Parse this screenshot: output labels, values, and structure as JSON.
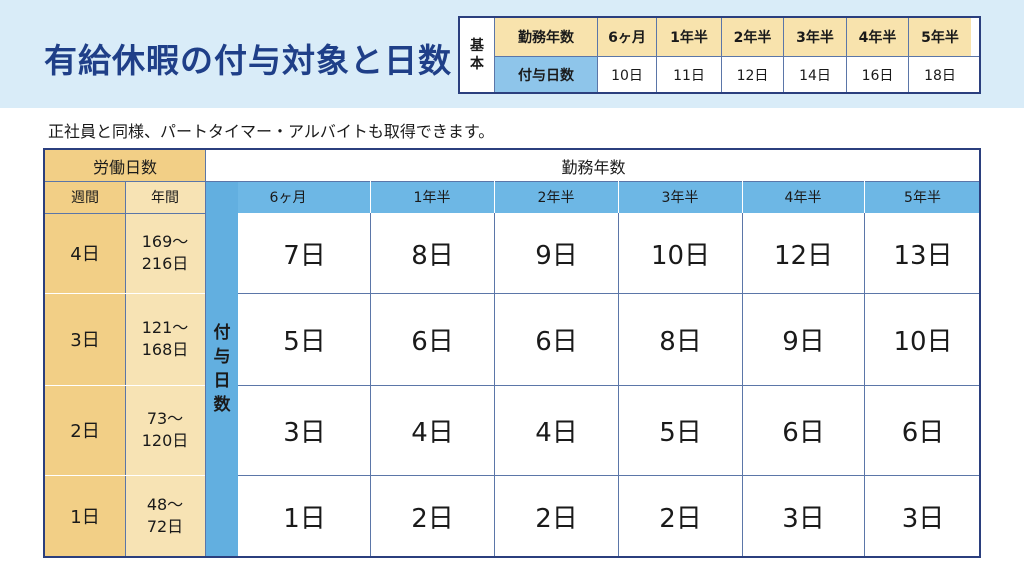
{
  "title": "有給休暇の付与対象と日数",
  "basic_table": {
    "row_label": "基本",
    "header_label": "勤務年数",
    "value_label": "付与日数",
    "years": [
      "6ヶ月",
      "1年半",
      "2年半",
      "3年半",
      "4年半",
      "5年半"
    ],
    "days": [
      "10日",
      "11日",
      "12日",
      "14日",
      "16日",
      "18日"
    ]
  },
  "subtitle": "正社員と同様、パートタイマー・アルバイトも取得できます。",
  "main_table": {
    "labor_days_header": "労働日数",
    "week_header": "週間",
    "year_header": "年間",
    "service_years_header": "勤務年数",
    "grant_days_vertical": [
      "付",
      "与",
      "日",
      "数"
    ],
    "years": [
      "6ヶ月",
      "1年半",
      "2年半",
      "3年半",
      "4年半",
      "5年半"
    ],
    "rows": [
      {
        "week": "4日",
        "year_line1": "169〜",
        "year_line2": "216日",
        "values": [
          "7日",
          "8日",
          "9日",
          "10日",
          "12日",
          "13日"
        ]
      },
      {
        "week": "3日",
        "year_line1": "121〜",
        "year_line2": "168日",
        "values": [
          "5日",
          "6日",
          "6日",
          "8日",
          "9日",
          "10日"
        ]
      },
      {
        "week": "2日",
        "year_line1": "73〜",
        "year_line2": "120日",
        "values": [
          "3日",
          "4日",
          "4日",
          "5日",
          "6日",
          "6日"
        ]
      },
      {
        "week": "1日",
        "year_line1": "48〜",
        "year_line2": "72日",
        "values": [
          "1日",
          "2日",
          "2日",
          "2日",
          "3日",
          "3日"
        ]
      }
    ]
  }
}
